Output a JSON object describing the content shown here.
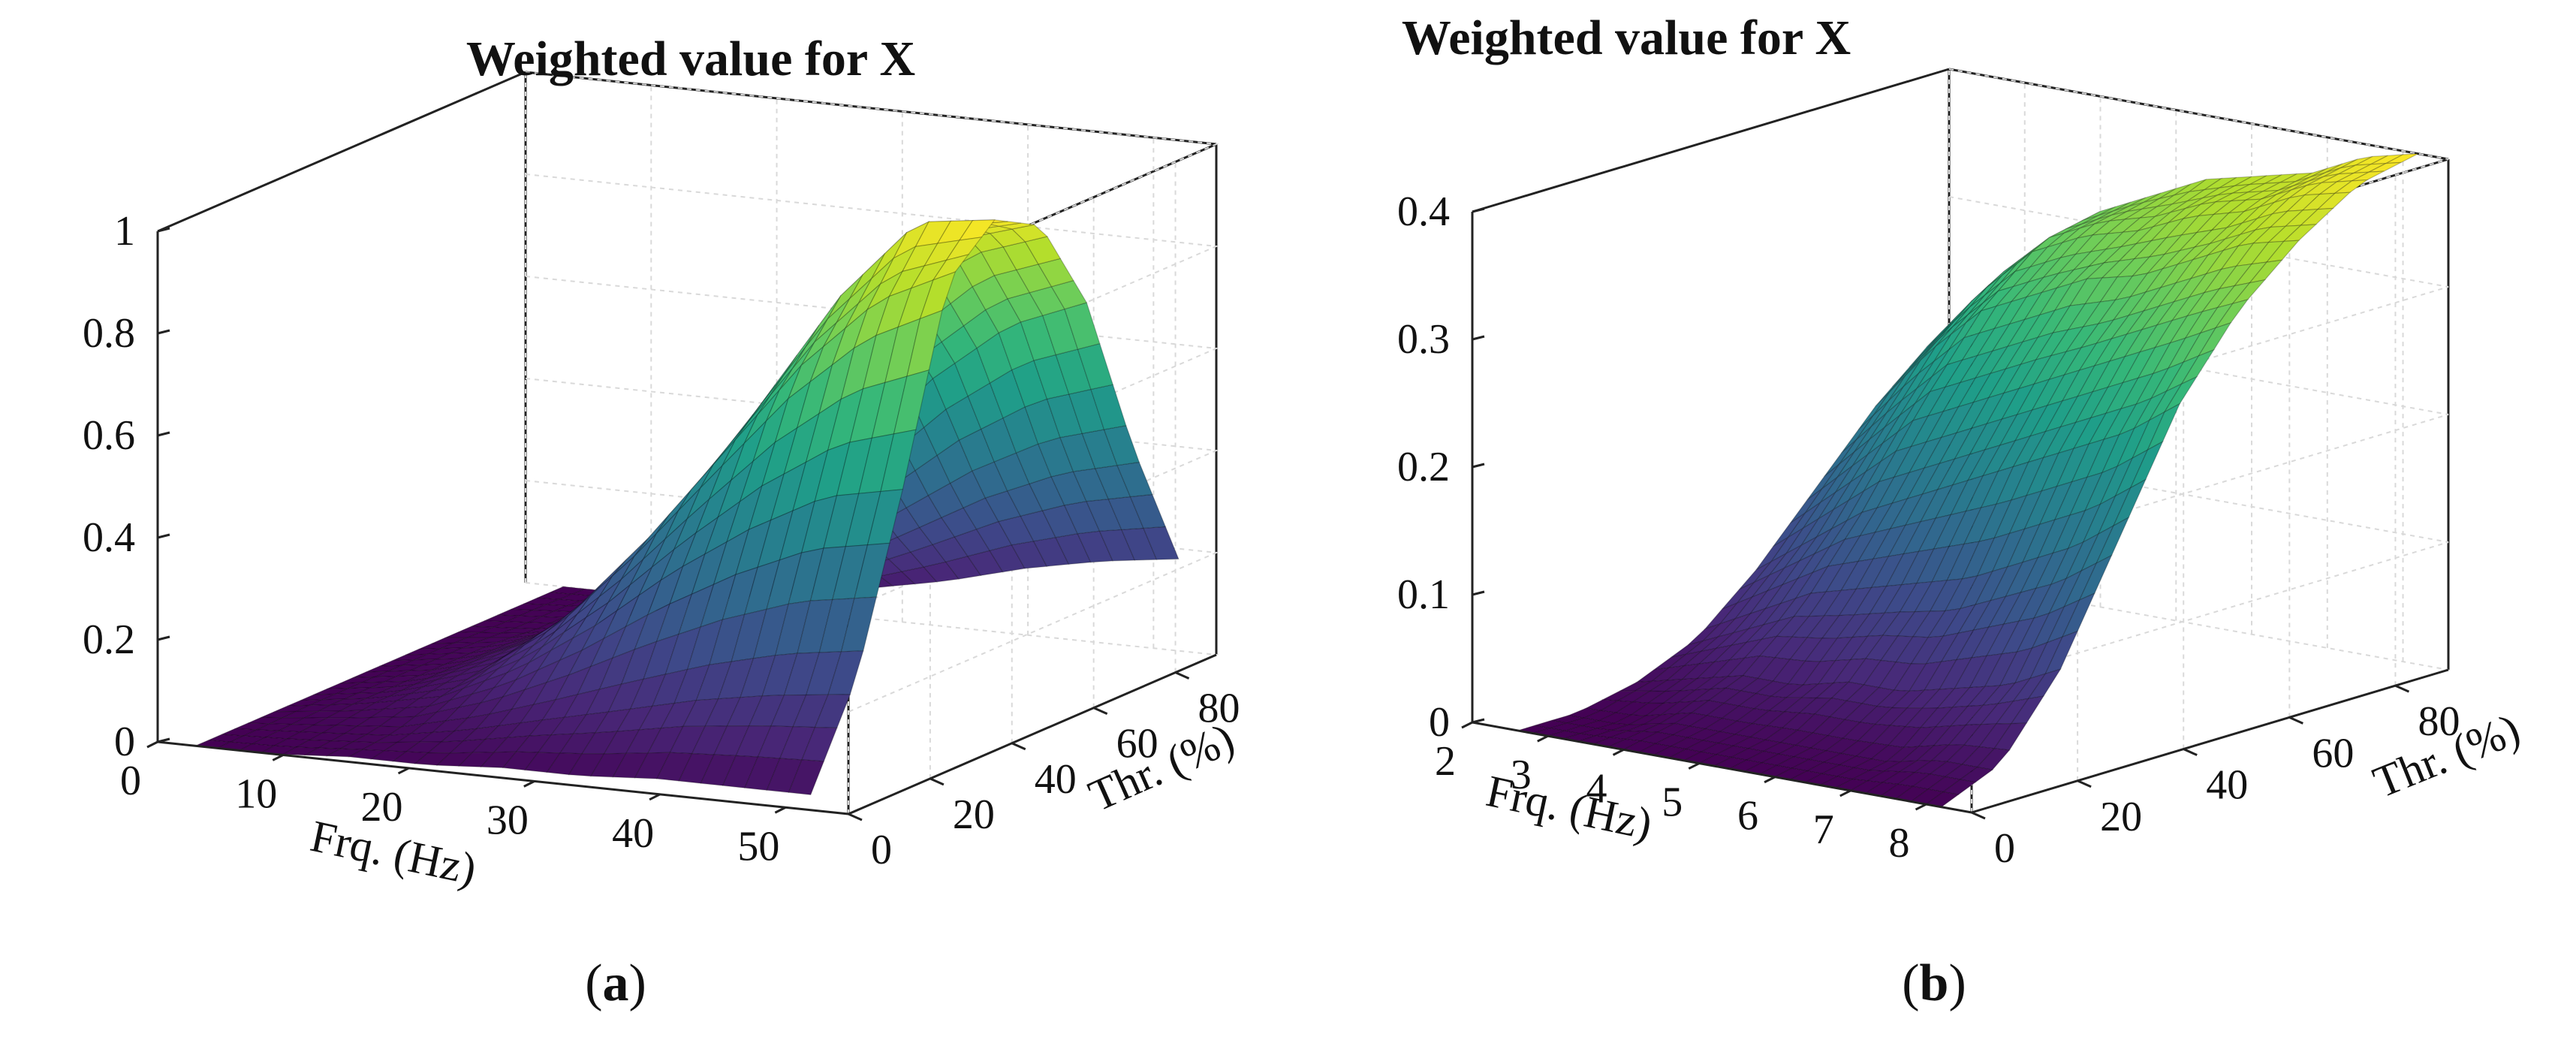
{
  "chart_data": [
    {
      "type": "surface",
      "panel": "a",
      "title": "Weighted value for X",
      "xlabel": "Frq. (Hz)",
      "ylabel": "Thr. (%)",
      "zlabel": "",
      "xlim": [
        0,
        55
      ],
      "ylim": [
        0,
        90
      ],
      "zlim": [
        0,
        1
      ],
      "xticks": [
        "0",
        "10",
        "20",
        "30",
        "40",
        "50"
      ],
      "yticks": [
        "0",
        "20",
        "40",
        "60",
        "80"
      ],
      "zticks": [
        "0",
        "0.2",
        "0.4",
        "0.6",
        "0.8",
        "1"
      ],
      "xtick_values": [
        0,
        10,
        20,
        30,
        40,
        50
      ],
      "ytick_values": [
        0,
        20,
        40,
        60,
        80
      ],
      "ztick_values": [
        0,
        0.2,
        0.4,
        0.6,
        0.8,
        1
      ],
      "x": [
        3,
        9.1,
        15.2,
        21.3,
        27.4,
        33.6,
        39.7,
        45.8,
        52
      ],
      "y": [
        0,
        11.25,
        22.5,
        33.75,
        45,
        56.25,
        67.5,
        78.75,
        90
      ],
      "z": [
        [
          0.0,
          0.0,
          0.01,
          0.01,
          0.02,
          0.02,
          0.03,
          0.03,
          0.03
        ],
        [
          0.0,
          0.01,
          0.02,
          0.05,
          0.09,
          0.13,
          0.17,
          0.2,
          0.22
        ],
        [
          0.0,
          0.02,
          0.05,
          0.12,
          0.22,
          0.34,
          0.44,
          0.52,
          0.55
        ],
        [
          0.0,
          0.02,
          0.07,
          0.18,
          0.34,
          0.52,
          0.7,
          0.84,
          0.92
        ],
        [
          0.0,
          0.02,
          0.08,
          0.2,
          0.38,
          0.6,
          0.82,
          0.98,
          1.0
        ],
        [
          0.0,
          0.02,
          0.07,
          0.18,
          0.35,
          0.55,
          0.76,
          0.9,
          0.95
        ],
        [
          0.0,
          0.01,
          0.05,
          0.13,
          0.26,
          0.42,
          0.58,
          0.7,
          0.76
        ],
        [
          0.0,
          0.01,
          0.03,
          0.08,
          0.15,
          0.24,
          0.33,
          0.4,
          0.44
        ],
        [
          0.0,
          0.0,
          0.01,
          0.03,
          0.06,
          0.09,
          0.13,
          0.16,
          0.18
        ]
      ],
      "caption": "a"
    },
    {
      "type": "surface",
      "panel": "b",
      "title": "Weighted value for X",
      "xlabel": "Frq. (Hz)",
      "ylabel": "Thr. (%)",
      "zlabel": "",
      "xlim": [
        2,
        8.6
      ],
      "ylim": [
        0,
        90
      ],
      "zlim": [
        0,
        0.4
      ],
      "xticks": [
        "2",
        "3",
        "4",
        "5",
        "6",
        "7",
        "8"
      ],
      "yticks": [
        "0",
        "20",
        "40",
        "60",
        "80"
      ],
      "zticks": [
        "0",
        "0.1",
        "0.2",
        "0.3",
        "0.4"
      ],
      "xtick_values": [
        2,
        3,
        4,
        5,
        6,
        7,
        8
      ],
      "ytick_values": [
        0,
        20,
        40,
        60,
        80
      ],
      "ztick_values": [
        0,
        0.1,
        0.2,
        0.3,
        0.4
      ],
      "x": [
        2.6,
        3.3,
        4.0,
        4.7,
        5.4,
        6.1,
        6.8,
        7.5,
        8.2
      ],
      "y": [
        0,
        11.25,
        22.5,
        33.75,
        45,
        56.25,
        67.5,
        78.75,
        90
      ],
      "z": [
        [
          0.0,
          0.0,
          0.0,
          0.0,
          0.0,
          0.0,
          0.0,
          0.0,
          0.0
        ],
        [
          0.0,
          0.0,
          0.01,
          0.01,
          0.01,
          0.01,
          0.01,
          0.02,
          0.02
        ],
        [
          0.01,
          0.02,
          0.03,
          0.03,
          0.04,
          0.04,
          0.05,
          0.06,
          0.08
        ],
        [
          0.03,
          0.05,
          0.07,
          0.08,
          0.09,
          0.1,
          0.12,
          0.14,
          0.17
        ],
        [
          0.07,
          0.1,
          0.13,
          0.15,
          0.17,
          0.19,
          0.21,
          0.23,
          0.26
        ],
        [
          0.12,
          0.16,
          0.2,
          0.22,
          0.24,
          0.26,
          0.28,
          0.3,
          0.32
        ],
        [
          0.17,
          0.22,
          0.26,
          0.28,
          0.3,
          0.31,
          0.33,
          0.35,
          0.36
        ],
        [
          0.21,
          0.26,
          0.3,
          0.32,
          0.33,
          0.35,
          0.36,
          0.38,
          0.39
        ],
        [
          0.22,
          0.28,
          0.31,
          0.33,
          0.35,
          0.36,
          0.37,
          0.39,
          0.4
        ]
      ],
      "caption": "b"
    }
  ]
}
